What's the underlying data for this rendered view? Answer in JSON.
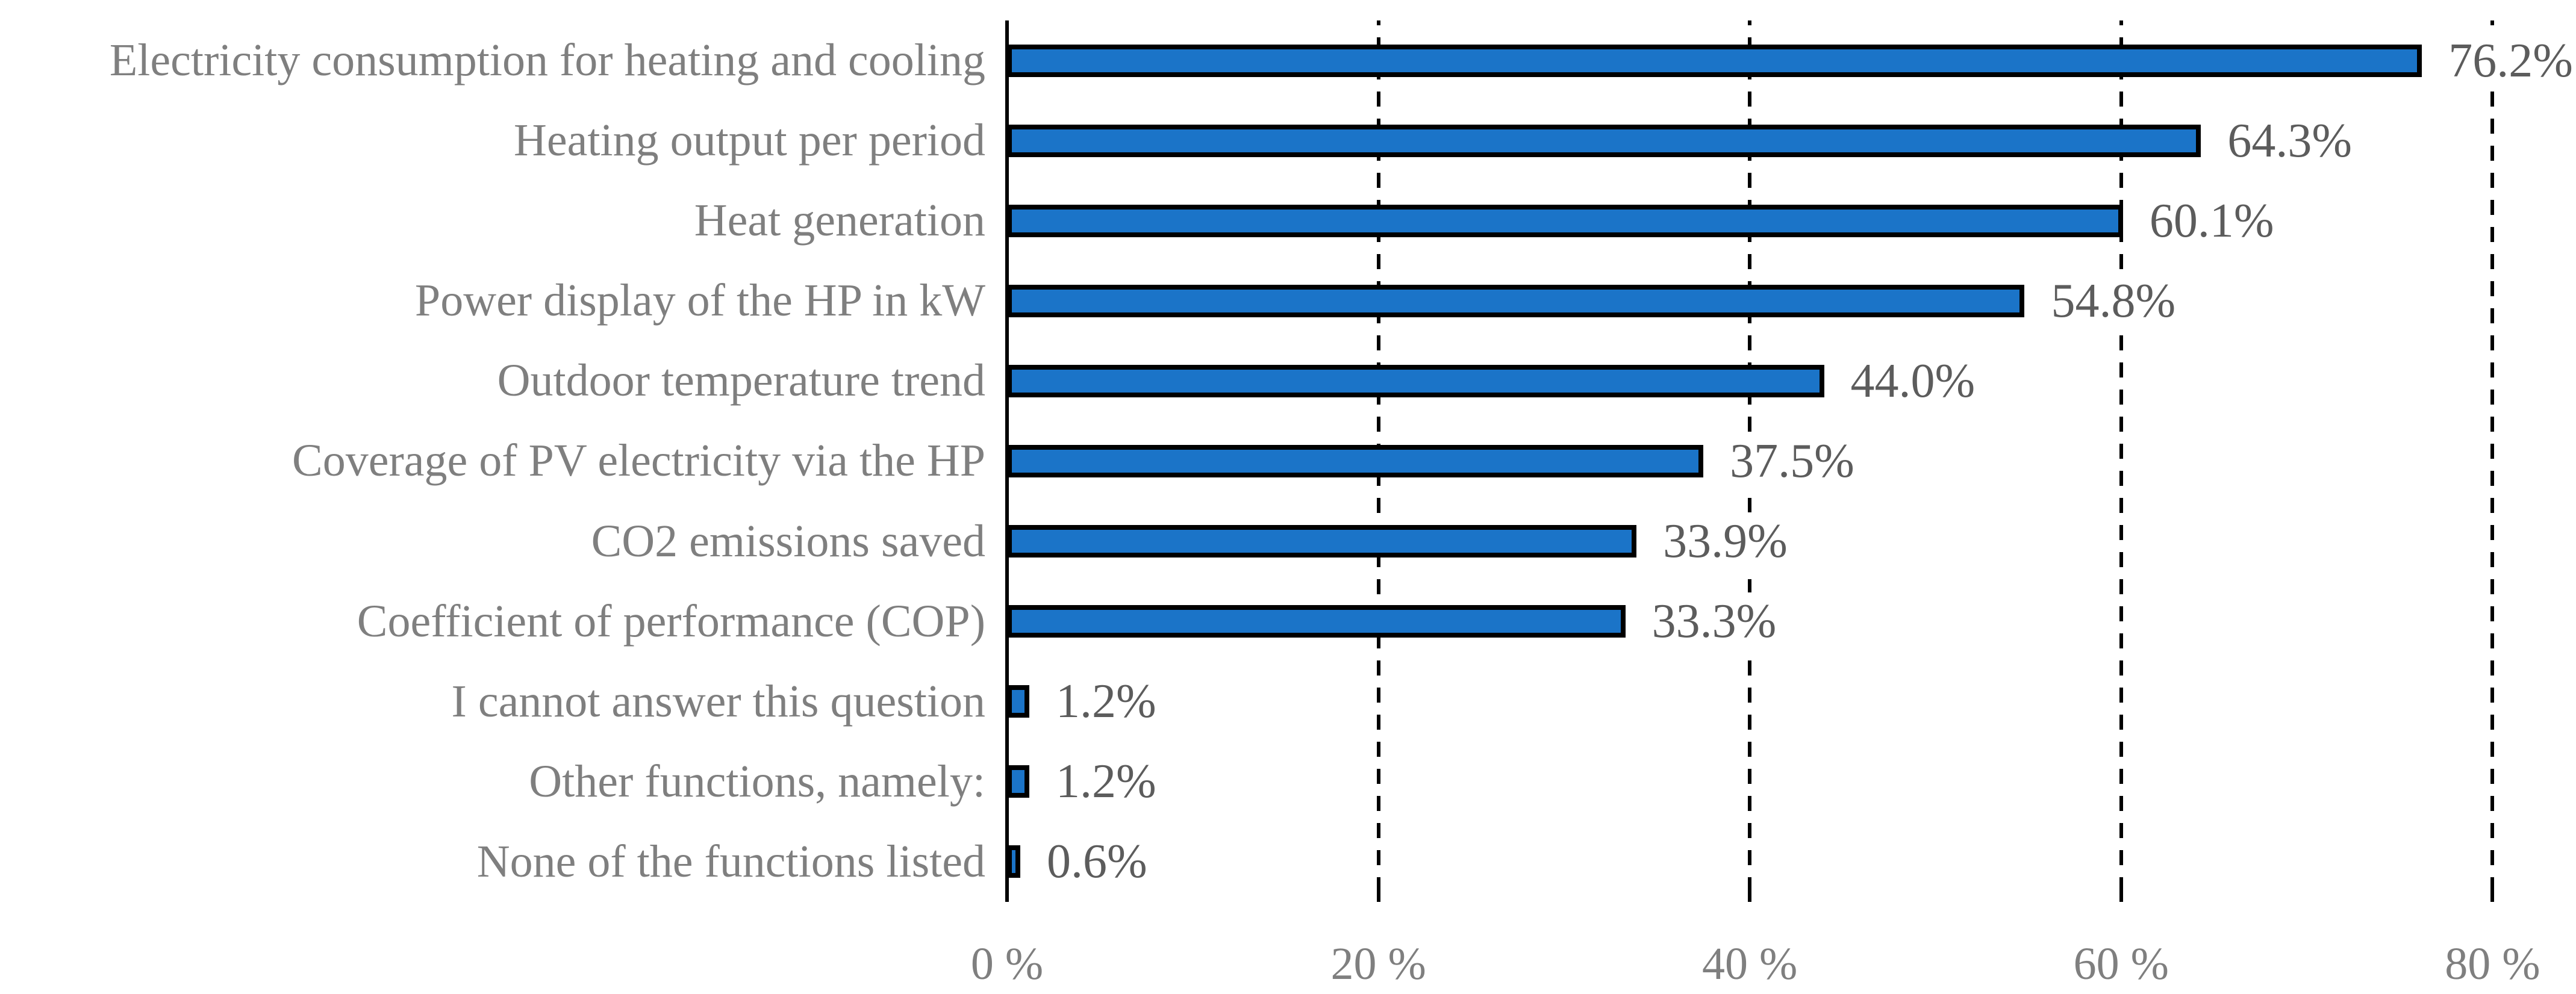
{
  "chart_data": {
    "type": "bar",
    "orientation": "horizontal",
    "title": "",
    "xlabel": "",
    "ylabel": "",
    "categories": [
      "Electricity consumption for heating and cooling",
      "Heating output per period",
      "Heat generation",
      "Power display of the HP in kW",
      "Outdoor temperature trend",
      "Coverage of PV electricity via the HP",
      "CO2 emissions saved",
      "Coefficient of performance (COP)",
      "I cannot answer this question",
      "Other functions, namely:",
      "None of the functions listed"
    ],
    "values": [
      76.2,
      64.3,
      60.1,
      54.8,
      44.0,
      37.5,
      33.9,
      33.3,
      1.2,
      1.2,
      0.6
    ],
    "value_labels": [
      "76.2%",
      "64.3%",
      "60.1%",
      "54.8%",
      "44.0%",
      "37.5%",
      "33.9%",
      "33.3%",
      "1.2%",
      "1.2%",
      "0.6%"
    ],
    "xlim": [
      0,
      80
    ],
    "x_ticks": [
      0,
      20,
      40,
      60,
      80
    ],
    "x_tick_labels": [
      "0 %",
      "20 %",
      "40 %",
      "60 %",
      "80 %"
    ],
    "grid": "vertical-dashed",
    "legend": "none",
    "colors": {
      "bar_fill": "#1b74c8",
      "bar_border": "#000000",
      "gridline": "#000000",
      "axis_line": "#000000",
      "category_label": "#7f7f7f",
      "value_label": "#5c5c5c",
      "tick_label": "#7f7f7f",
      "background": "#ffffff"
    }
  }
}
